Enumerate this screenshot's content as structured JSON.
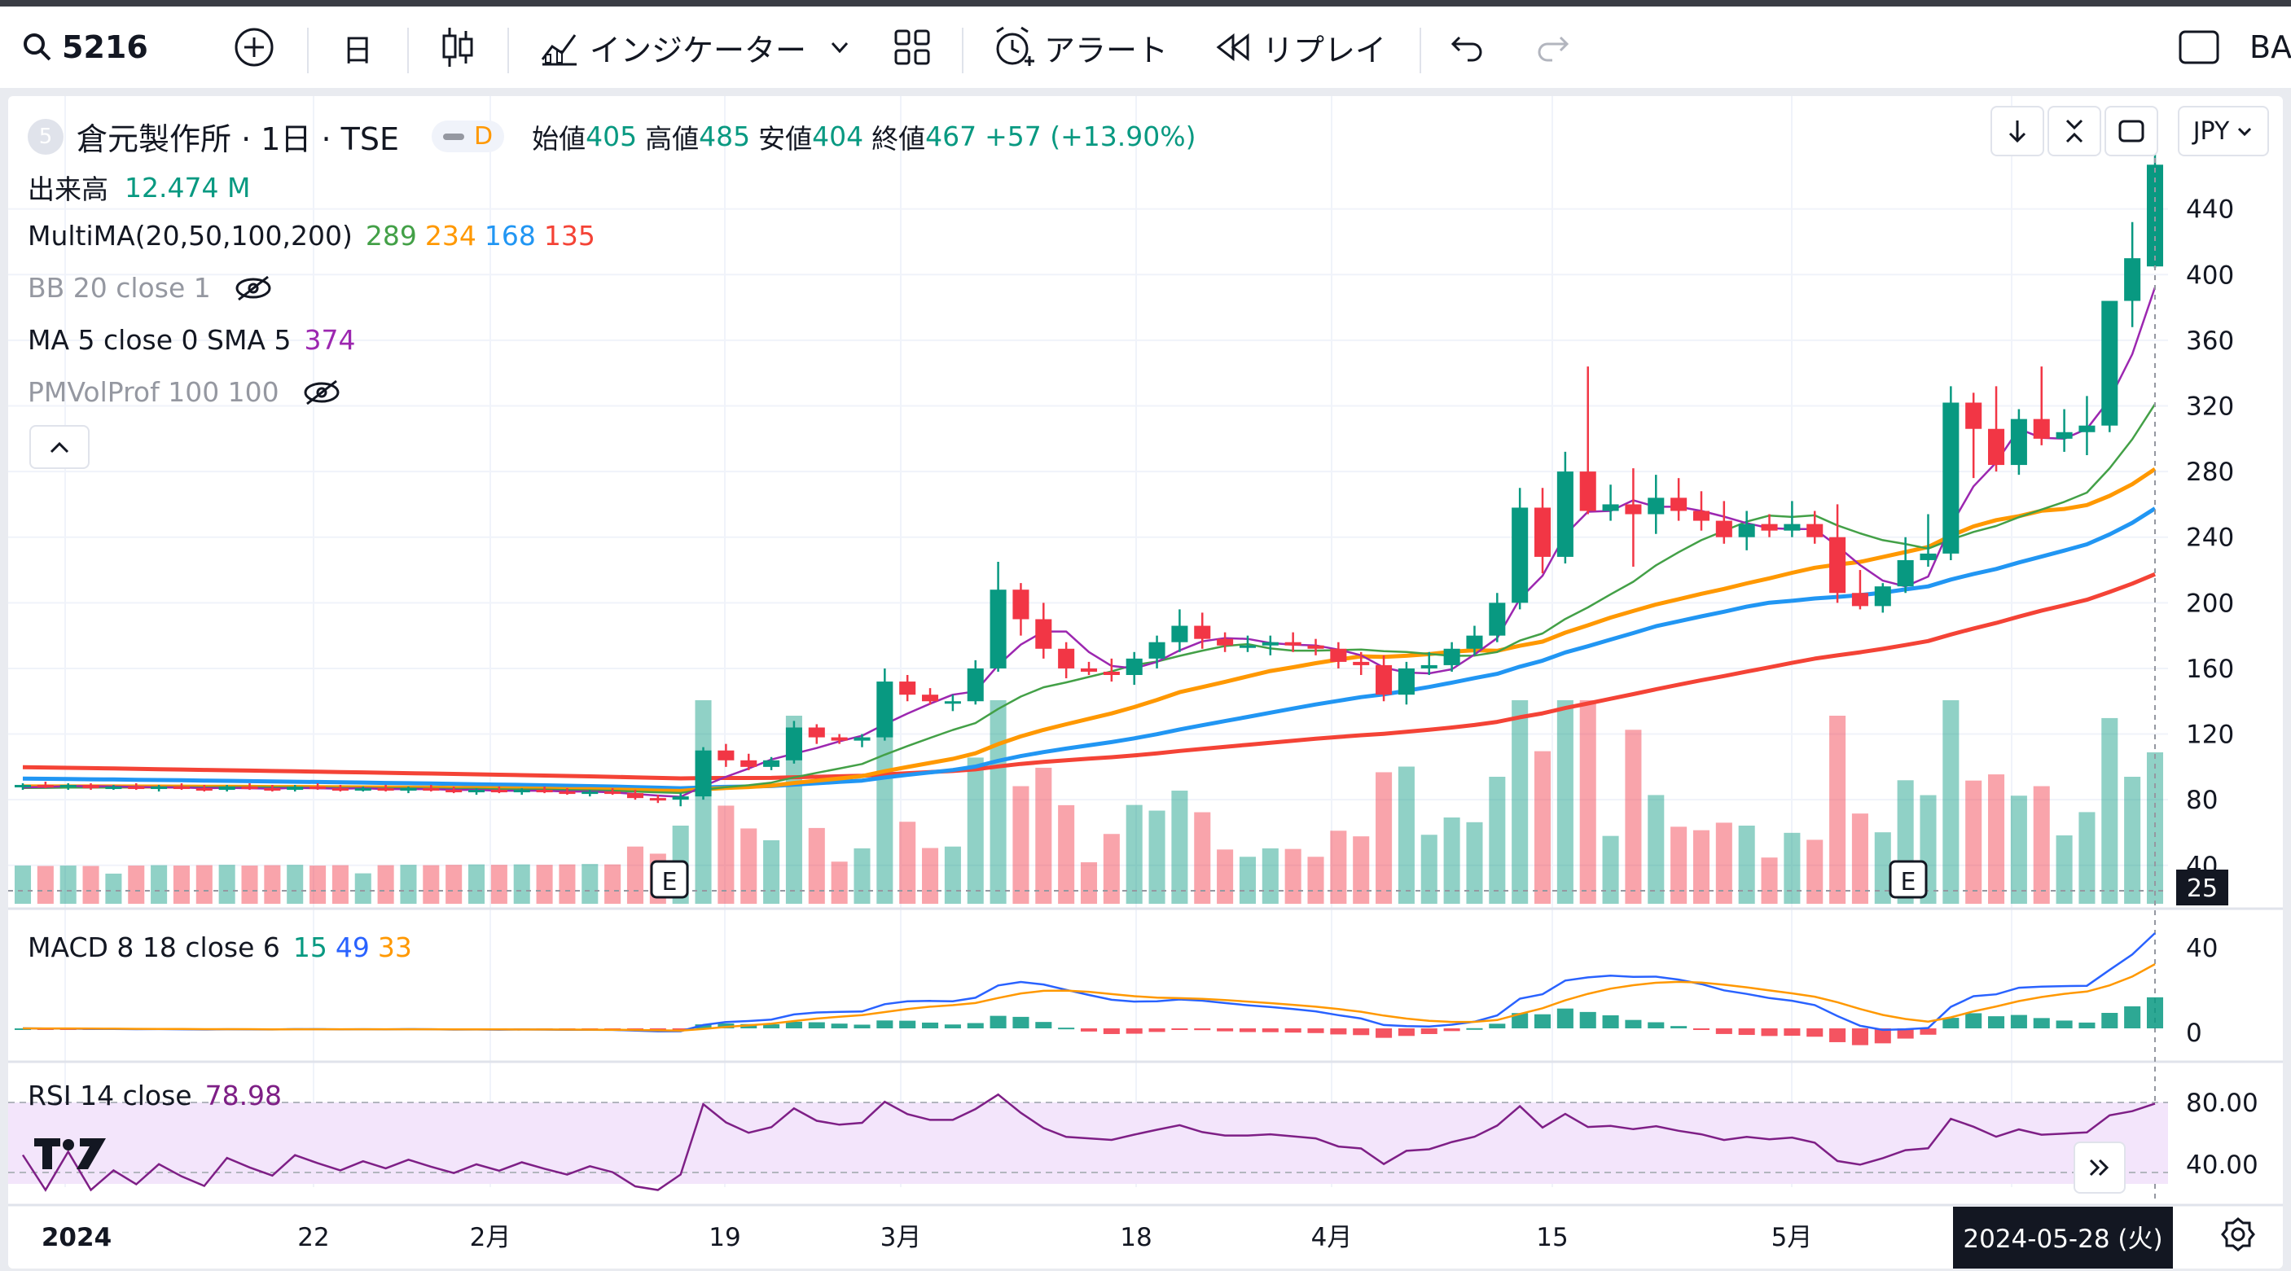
{
  "toolbar": {
    "symbol": "5216",
    "interval": "日",
    "indicators_label": "インジケーター",
    "alert_label": "アラート",
    "replay_label": "リプレイ",
    "right_cut_label": "BAS"
  },
  "legend": {
    "symbol_badge": "5",
    "title": "倉元製作所 · 1日 · TSE",
    "d_badge": "D",
    "open_label": "始値",
    "open": "405",
    "high_label": "高値",
    "high": "485",
    "low_label": "安値",
    "low": "404",
    "close_label": "終値",
    "close": "467",
    "change": "+57 (+13.90%)",
    "volume_label": "出来高",
    "volume": "12.474 M",
    "multima_label": "MultiMA(20,50,100,200)",
    "multima_values": [
      "289",
      "234",
      "168",
      "135"
    ],
    "bb_label": "BB 20 close 1",
    "ma_label": "MA 5 close 0 SMA 5",
    "ma_value": "374",
    "pmvol_label": "PMVolProf 100 100",
    "macd_label": "MACD 8 18 close 6",
    "macd_values": [
      "15",
      "49",
      "33"
    ],
    "rsi_label": "RSI 14 close",
    "rsi_value": "78.98"
  },
  "currency": "JPY",
  "colors": {
    "up": "#089981",
    "down": "#f23645",
    "ma20": "#43a047",
    "ma50": "#ff9800",
    "ma100": "#2196f3",
    "ma200": "#f44336",
    "ma5": "#9c27b0",
    "macd": "#2962ff",
    "signal": "#ff9800",
    "rsi": "#7e1f86"
  },
  "price_axis": [
    "440",
    "400",
    "360",
    "320",
    "280",
    "240",
    "200",
    "160",
    "120",
    "80",
    "40"
  ],
  "volume_axis_value": "25",
  "macd_axis": [
    "40",
    "0"
  ],
  "rsi_axis": [
    "80.00",
    "40.00"
  ],
  "time_axis": [
    "2024",
    "22",
    "2月",
    "19",
    "3月",
    "18",
    "4月",
    "15",
    "5月"
  ],
  "crosshair_date": "2024-05-28 (火)",
  "earnings_marker": "E",
  "chart_data": {
    "type": "candlestick",
    "price_range": [
      25,
      485
    ],
    "candles_ohlc": [
      [
        88,
        90,
        86,
        89
      ],
      [
        89,
        91,
        87,
        88
      ],
      [
        88,
        90,
        86,
        89
      ],
      [
        89,
        90,
        86,
        87
      ],
      [
        87,
        89,
        86,
        88
      ],
      [
        88,
        90,
        86,
        87
      ],
      [
        87,
        89,
        85,
        88
      ],
      [
        88,
        90,
        86,
        87
      ],
      [
        87,
        89,
        85,
        86
      ],
      [
        86,
        89,
        85,
        88
      ],
      [
        88,
        90,
        86,
        87
      ],
      [
        87,
        89,
        85,
        86
      ],
      [
        86,
        89,
        85,
        88
      ],
      [
        88,
        90,
        86,
        87
      ],
      [
        87,
        89,
        85,
        86
      ],
      [
        86,
        88,
        85,
        87
      ],
      [
        87,
        89,
        85,
        86
      ],
      [
        86,
        88,
        84,
        87
      ],
      [
        87,
        89,
        85,
        86
      ],
      [
        86,
        88,
        84,
        85
      ],
      [
        85,
        87,
        83,
        86
      ],
      [
        86,
        88,
        84,
        85
      ],
      [
        85,
        87,
        83,
        86
      ],
      [
        86,
        88,
        84,
        85
      ],
      [
        85,
        87,
        83,
        84
      ],
      [
        84,
        86,
        82,
        85
      ],
      [
        85,
        87,
        83,
        84
      ],
      [
        84,
        86,
        80,
        81
      ],
      [
        81,
        83,
        78,
        80
      ],
      [
        80,
        84,
        76,
        82
      ],
      [
        82,
        112,
        80,
        110
      ],
      [
        110,
        114,
        100,
        104
      ],
      [
        104,
        108,
        98,
        100
      ],
      [
        100,
        106,
        98,
        104
      ],
      [
        104,
        128,
        102,
        124
      ],
      [
        124,
        126,
        114,
        118
      ],
      [
        118,
        120,
        114,
        116
      ],
      [
        116,
        120,
        112,
        118
      ],
      [
        118,
        160,
        116,
        152
      ],
      [
        152,
        156,
        140,
        144
      ],
      [
        144,
        148,
        138,
        140
      ],
      [
        140,
        144,
        134,
        140
      ],
      [
        140,
        165,
        138,
        160
      ],
      [
        160,
        225,
        158,
        208
      ],
      [
        208,
        212,
        180,
        190
      ],
      [
        190,
        200,
        166,
        172
      ],
      [
        172,
        176,
        154,
        160
      ],
      [
        160,
        164,
        156,
        158
      ],
      [
        158,
        166,
        152,
        156
      ],
      [
        156,
        170,
        150,
        166
      ],
      [
        166,
        180,
        160,
        176
      ],
      [
        176,
        196,
        170,
        186
      ],
      [
        186,
        194,
        172,
        178
      ],
      [
        178,
        182,
        170,
        174
      ],
      [
        174,
        180,
        170,
        174
      ],
      [
        174,
        180,
        168,
        176
      ],
      [
        176,
        182,
        170,
        174
      ],
      [
        174,
        178,
        168,
        172
      ],
      [
        172,
        176,
        160,
        164
      ],
      [
        164,
        170,
        156,
        162
      ],
      [
        162,
        168,
        140,
        144
      ],
      [
        144,
        164,
        138,
        160
      ],
      [
        160,
        170,
        156,
        162
      ],
      [
        162,
        176,
        158,
        172
      ],
      [
        172,
        186,
        168,
        180
      ],
      [
        180,
        206,
        176,
        200
      ],
      [
        200,
        270,
        196,
        258
      ],
      [
        258,
        270,
        218,
        228
      ],
      [
        228,
        292,
        224,
        280
      ],
      [
        280,
        344,
        254,
        256
      ],
      [
        256,
        272,
        250,
        260
      ],
      [
        260,
        282,
        222,
        254
      ],
      [
        254,
        278,
        242,
        264
      ],
      [
        264,
        276,
        250,
        256
      ],
      [
        256,
        268,
        244,
        250
      ],
      [
        250,
        262,
        236,
        240
      ],
      [
        240,
        256,
        232,
        248
      ],
      [
        248,
        254,
        240,
        244
      ],
      [
        244,
        262,
        240,
        248
      ],
      [
        248,
        256,
        236,
        240
      ],
      [
        240,
        260,
        200,
        206
      ],
      [
        206,
        220,
        196,
        198
      ],
      [
        198,
        212,
        194,
        210
      ],
      [
        210,
        240,
        206,
        226
      ],
      [
        226,
        254,
        222,
        230
      ],
      [
        230,
        332,
        226,
        322
      ],
      [
        322,
        328,
        276,
        306
      ],
      [
        306,
        332,
        280,
        284
      ],
      [
        284,
        318,
        278,
        312
      ],
      [
        312,
        344,
        296,
        300
      ],
      [
        300,
        318,
        292,
        304
      ],
      [
        304,
        326,
        290,
        308
      ],
      [
        308,
        380,
        304,
        384
      ],
      [
        384,
        432,
        368,
        410
      ],
      [
        405,
        485,
        404,
        467
      ]
    ],
    "macd_last": {
      "histogram": 15,
      "macd": 49,
      "signal": 33
    },
    "rsi_last": 78.98,
    "ma_last": {
      "ma20": 289,
      "ma50": 234,
      "ma100": 168,
      "ma200": 135,
      "ma5": 374
    }
  }
}
